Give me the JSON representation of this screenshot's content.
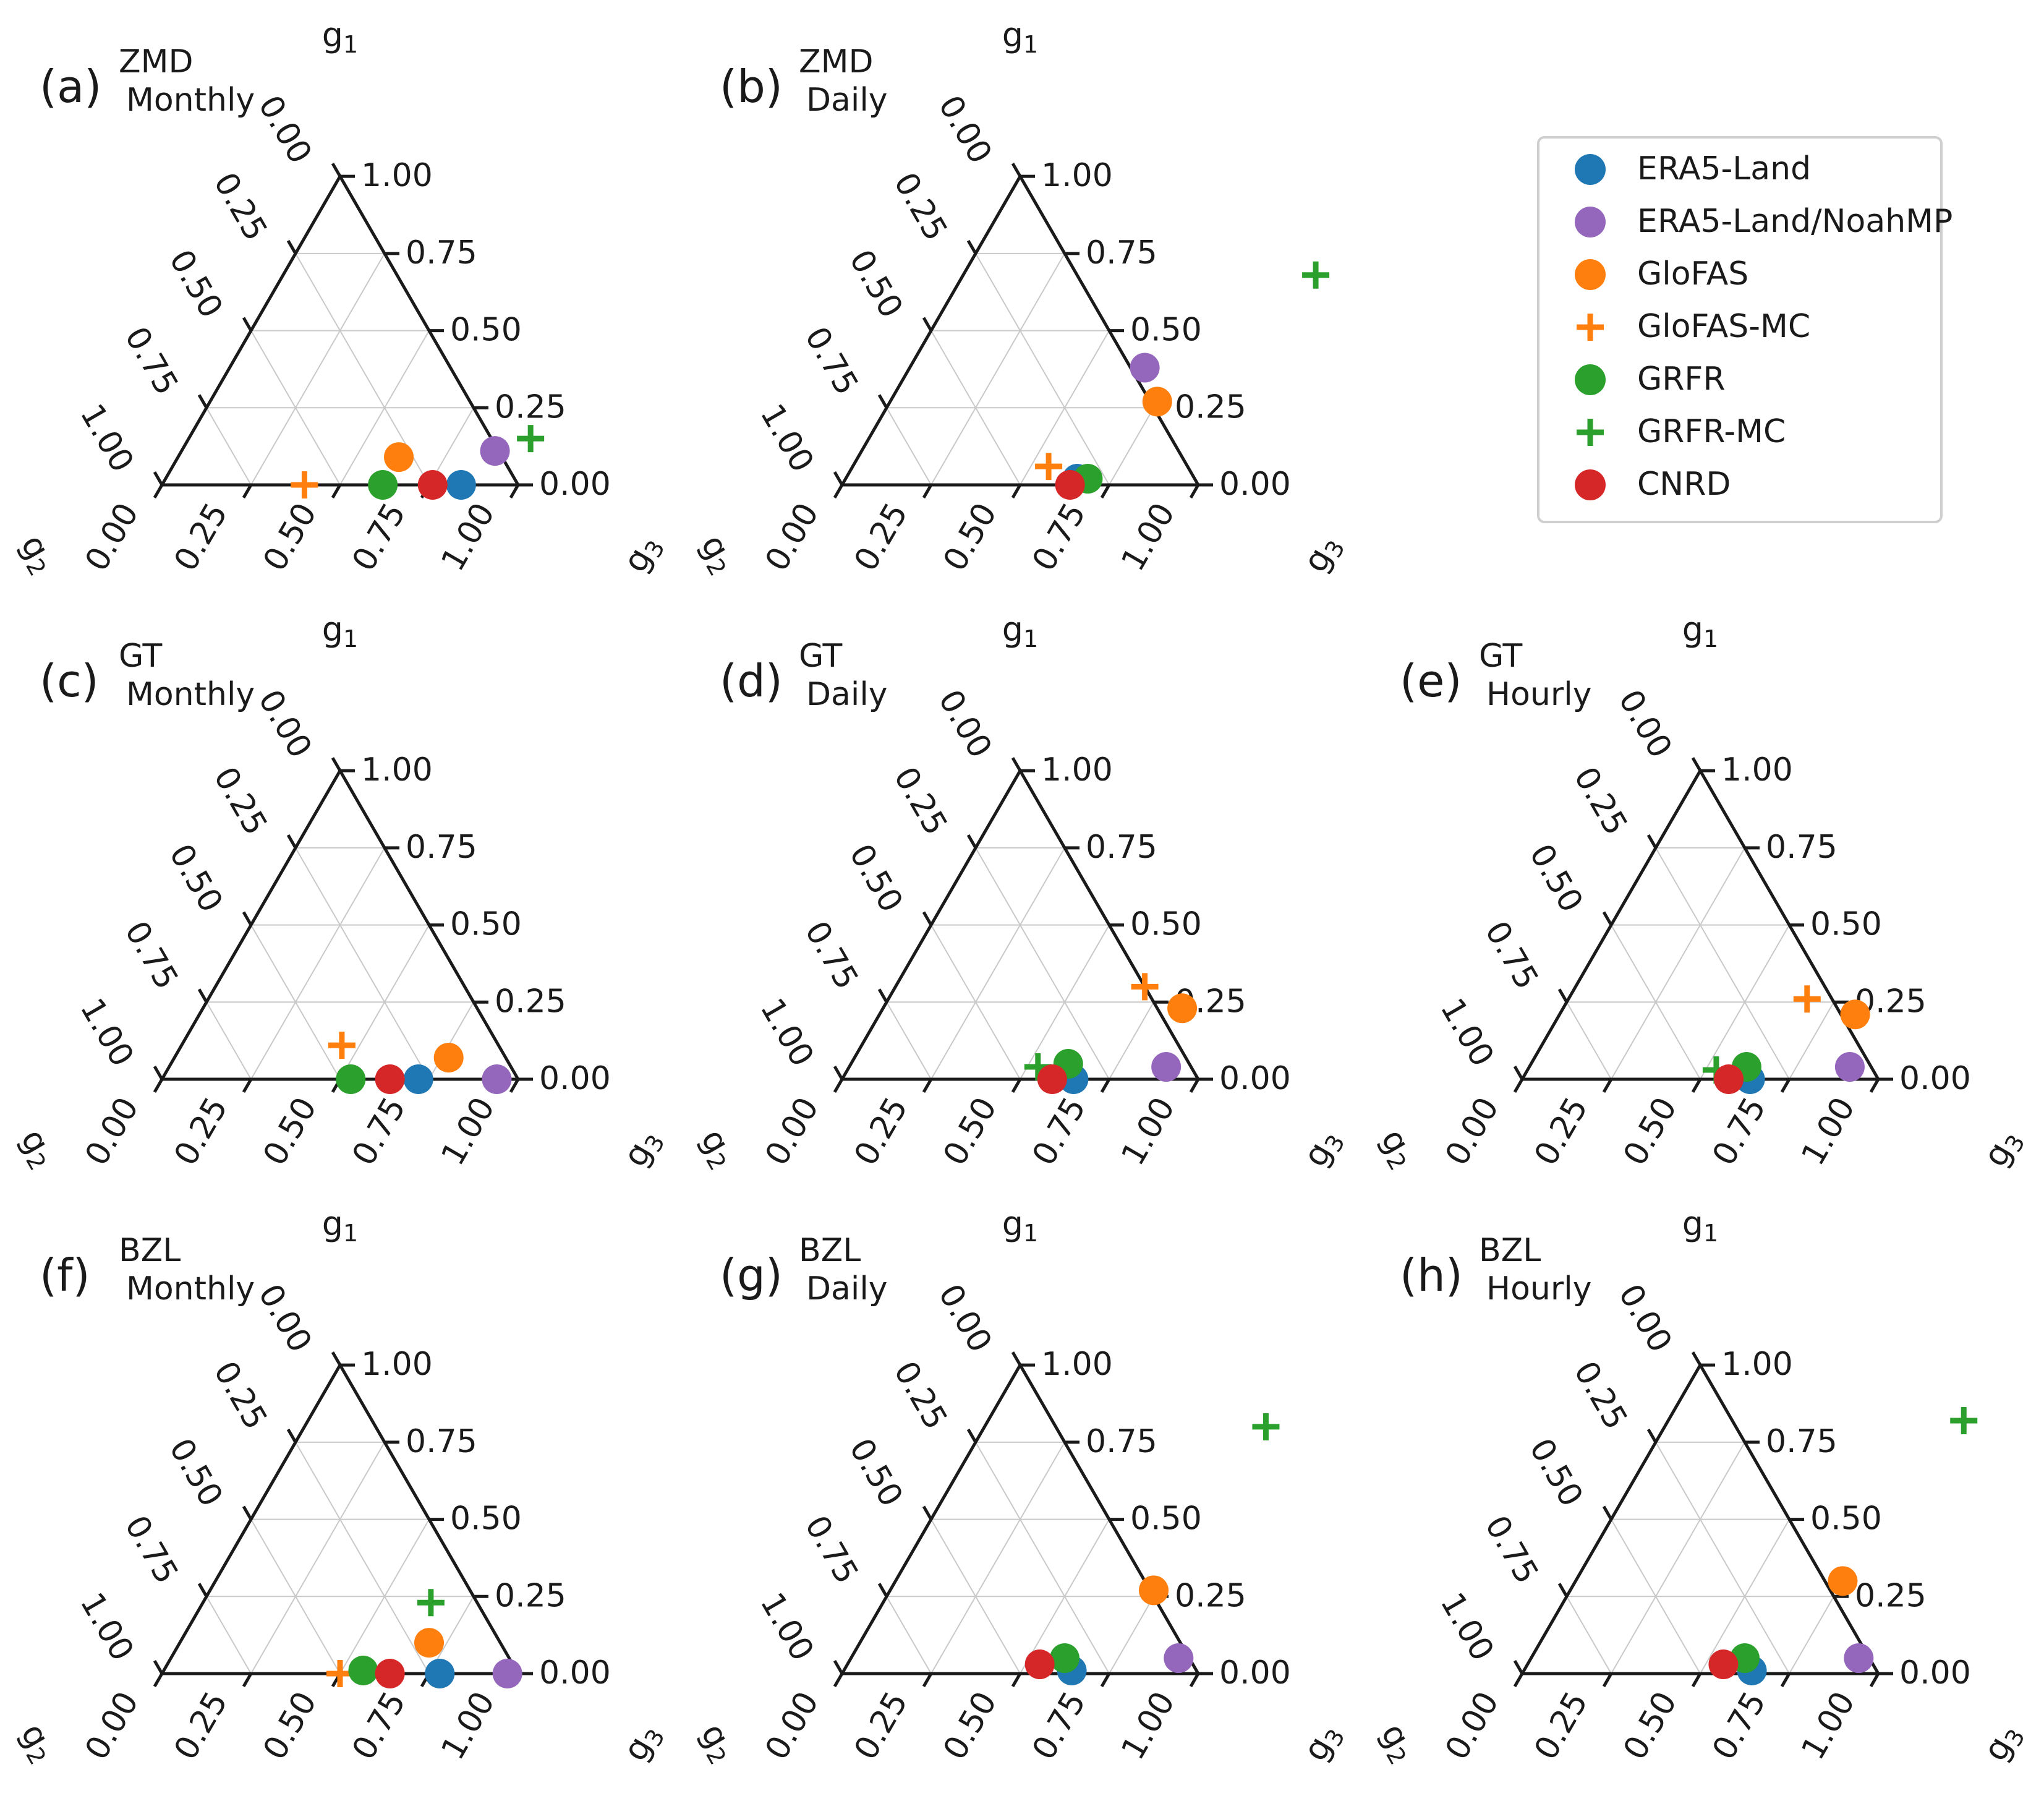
{
  "figure": {
    "axis_names": {
      "g1": "g",
      "g2": "g",
      "g3": "g",
      "g1_sub": "1",
      "g2_sub": "2",
      "g3_sub": "3"
    },
    "tick_labels": [
      "0.00",
      "0.25",
      "0.50",
      "0.75",
      "1.00"
    ]
  },
  "legend": {
    "items": [
      {
        "key": "era5",
        "label": "ERA5-Land",
        "color": "#1f77b4",
        "marker": "circle"
      },
      {
        "key": "noah",
        "label": "ERA5-Land/NoahMP",
        "color": "#9467bd",
        "marker": "circle"
      },
      {
        "key": "glofas",
        "label": "GloFAS",
        "color": "#ff7f0e",
        "marker": "circle"
      },
      {
        "key": "glofasmc",
        "label": "GloFAS-MC",
        "color": "#ff7f0e",
        "marker": "plus"
      },
      {
        "key": "grfr",
        "label": "GRFR",
        "color": "#2ca02c",
        "marker": "circle"
      },
      {
        "key": "grfrmc",
        "label": "GRFR-MC",
        "color": "#2ca02c",
        "marker": "plus"
      },
      {
        "key": "cnrd",
        "label": "CNRD",
        "color": "#d62728",
        "marker": "circle"
      }
    ]
  },
  "chart_data": [
    {
      "type": "scatter",
      "panel": "(a)",
      "title_line1": "ZMD",
      "title_line2": "Monthly",
      "points": [
        {
          "series": "era5",
          "g3": 0.84,
          "g1": 0.0
        },
        {
          "series": "noah",
          "g3": 0.88,
          "g1": 0.11
        },
        {
          "series": "glofas",
          "g3": 0.62,
          "g1": 0.09
        },
        {
          "series": "glofasmc",
          "g3": 0.4,
          "g1": 0.0
        },
        {
          "series": "grfr",
          "g3": 0.62,
          "g1": 0.0
        },
        {
          "series": "grfrmc",
          "g3": 0.96,
          "g1": 0.15
        },
        {
          "series": "cnrd",
          "g3": 0.76,
          "g1": 0.0
        }
      ]
    },
    {
      "type": "scatter",
      "panel": "(b)",
      "title_line1": "ZMD",
      "title_line2": "Daily",
      "points": [
        {
          "series": "era5",
          "g3": 0.65,
          "g1": 0.02
        },
        {
          "series": "noah",
          "g3": 0.66,
          "g1": 0.38
        },
        {
          "series": "glofas",
          "g3": 0.75,
          "g1": 0.27
        },
        {
          "series": "glofasmc",
          "g3": 0.55,
          "g1": 0.06
        },
        {
          "series": "grfr",
          "g3": 0.68,
          "g1": 0.02
        },
        {
          "series": "grfrmc",
          "g3": 0.99,
          "g1": 0.68
        },
        {
          "series": "cnrd",
          "g3": 0.64,
          "g1": 0.0
        }
      ]
    },
    {
      "type": "scatter",
      "panel": "(c)",
      "title_line1": "GT",
      "title_line2": "Monthly",
      "points": [
        {
          "series": "era5",
          "g3": 0.72,
          "g1": 0.0
        },
        {
          "series": "noah",
          "g3": 0.94,
          "g1": 0.0
        },
        {
          "series": "glofas",
          "g3": 0.77,
          "g1": 0.07
        },
        {
          "series": "glofasmc",
          "g3": 0.45,
          "g1": 0.11
        },
        {
          "series": "grfr",
          "g3": 0.53,
          "g1": 0.0
        },
        {
          "series": "cnrd",
          "g3": 0.64,
          "g1": 0.0
        }
      ]
    },
    {
      "type": "scatter",
      "panel": "(d)",
      "title_line1": "GT",
      "title_line2": "Daily",
      "points": [
        {
          "series": "era5",
          "g3": 0.65,
          "g1": 0.0
        },
        {
          "series": "noah",
          "g3": 0.89,
          "g1": 0.04
        },
        {
          "series": "glofas",
          "g3": 0.84,
          "g1": 0.23
        },
        {
          "series": "glofasmc",
          "g3": 0.7,
          "g1": 0.3
        },
        {
          "series": "grfr",
          "g3": 0.61,
          "g1": 0.05
        },
        {
          "series": "grfrmc",
          "g3": 0.53,
          "g1": 0.04
        },
        {
          "series": "cnrd",
          "g3": 0.59,
          "g1": 0.0
        }
      ]
    },
    {
      "type": "scatter",
      "panel": "(e)",
      "title_line1": "GT",
      "title_line2": "Hourly",
      "points": [
        {
          "series": "era5",
          "g3": 0.64,
          "g1": 0.0
        },
        {
          "series": "noah",
          "g3": 0.9,
          "g1": 0.04
        },
        {
          "series": "glofas",
          "g3": 0.83,
          "g1": 0.21
        },
        {
          "series": "glofasmc",
          "g3": 0.67,
          "g1": 0.26
        },
        {
          "series": "grfr",
          "g3": 0.61,
          "g1": 0.04
        },
        {
          "series": "grfrmc",
          "g3": 0.53,
          "g1": 0.03
        },
        {
          "series": "cnrd",
          "g3": 0.58,
          "g1": 0.0
        }
      ]
    },
    {
      "type": "scatter",
      "panel": "(f)",
      "title_line1": "BZL",
      "title_line2": "Monthly",
      "points": [
        {
          "series": "era5",
          "g3": 0.78,
          "g1": 0.0
        },
        {
          "series": "noah",
          "g3": 0.97,
          "g1": 0.0
        },
        {
          "series": "glofas",
          "g3": 0.7,
          "g1": 0.1
        },
        {
          "series": "glofasmc",
          "g3": 0.5,
          "g1": 0.0
        },
        {
          "series": "grfr",
          "g3": 0.56,
          "g1": 0.01
        },
        {
          "series": "grfrmc",
          "g3": 0.64,
          "g1": 0.23
        },
        {
          "series": "cnrd",
          "g3": 0.64,
          "g1": 0.0
        }
      ]
    },
    {
      "type": "scatter",
      "panel": "(g)",
      "title_line1": "BZL",
      "title_line2": "Daily",
      "points": [
        {
          "series": "era5",
          "g3": 0.64,
          "g1": 0.01
        },
        {
          "series": "noah",
          "g3": 0.92,
          "g1": 0.05
        },
        {
          "series": "glofas",
          "g3": 0.74,
          "g1": 0.27
        },
        {
          "series": "grfr",
          "g3": 0.6,
          "g1": 0.05
        },
        {
          "series": "grfrmc",
          "g3": 0.79,
          "g1": 0.8
        },
        {
          "series": "cnrd",
          "g3": 0.54,
          "g1": 0.03
        }
      ]
    },
    {
      "type": "scatter",
      "panel": "(h)",
      "title_line1": "BZL",
      "title_line2": "Hourly",
      "points": [
        {
          "series": "era5",
          "g3": 0.64,
          "g1": 0.01
        },
        {
          "series": "noah",
          "g3": 0.92,
          "g1": 0.05
        },
        {
          "series": "glofas",
          "g3": 0.75,
          "g1": 0.3
        },
        {
          "series": "grfr",
          "g3": 0.6,
          "g1": 0.05
        },
        {
          "series": "grfrmc",
          "g3": 0.83,
          "g1": 0.82
        },
        {
          "series": "cnrd",
          "g3": 0.55,
          "g1": 0.03
        }
      ]
    }
  ]
}
